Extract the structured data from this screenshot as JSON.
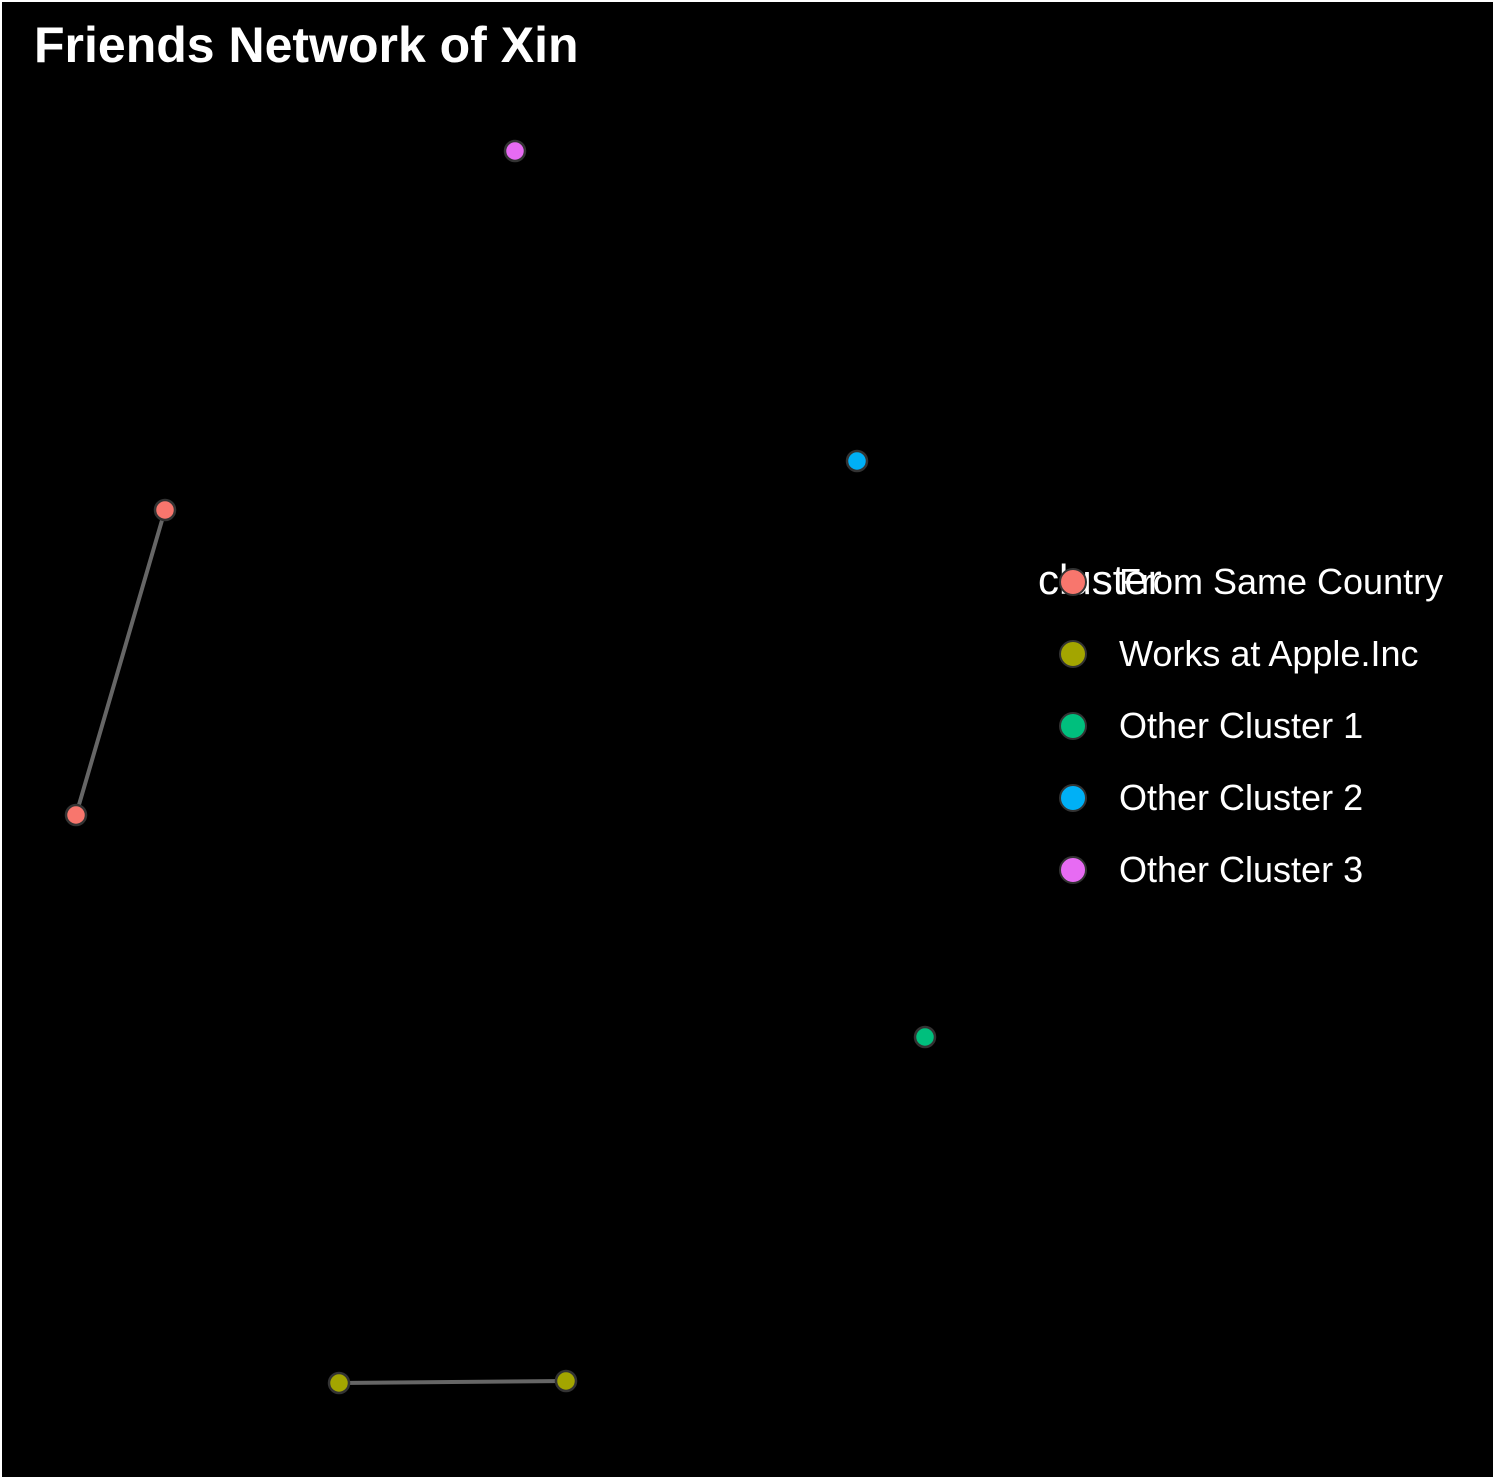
{
  "title": "Friends Network of Xin",
  "legend": {
    "title": "cluster",
    "items": [
      {
        "label": "From Same Country",
        "color": "#F8766D"
      },
      {
        "label": "Works at Apple.Inc",
        "color": "#A3A500"
      },
      {
        "label": "Other Cluster 1",
        "color": "#00BF7D"
      },
      {
        "label": "Other Cluster 2",
        "color": "#00B0F6"
      },
      {
        "label": "Other Cluster 3",
        "color": "#E76BF3"
      }
    ]
  },
  "chart_data": {
    "type": "network",
    "background": "#000000",
    "edge_color": "#666666",
    "node_outline_color": "#333333",
    "nodes": [
      {
        "id": "n1",
        "cluster": "From Same Country"
      },
      {
        "id": "n2",
        "cluster": "From Same Country"
      },
      {
        "id": "n3",
        "cluster": "Works at Apple.Inc"
      },
      {
        "id": "n4",
        "cluster": "Works at Apple.Inc"
      },
      {
        "id": "n5",
        "cluster": "Other Cluster 1"
      },
      {
        "id": "n6",
        "cluster": "Other Cluster 2"
      },
      {
        "id": "n7",
        "cluster": "Other Cluster 3"
      }
    ],
    "edges": [
      {
        "source": "n1",
        "target": "n2"
      },
      {
        "source": "n3",
        "target": "n4"
      }
    ],
    "legend_placement": "right"
  }
}
